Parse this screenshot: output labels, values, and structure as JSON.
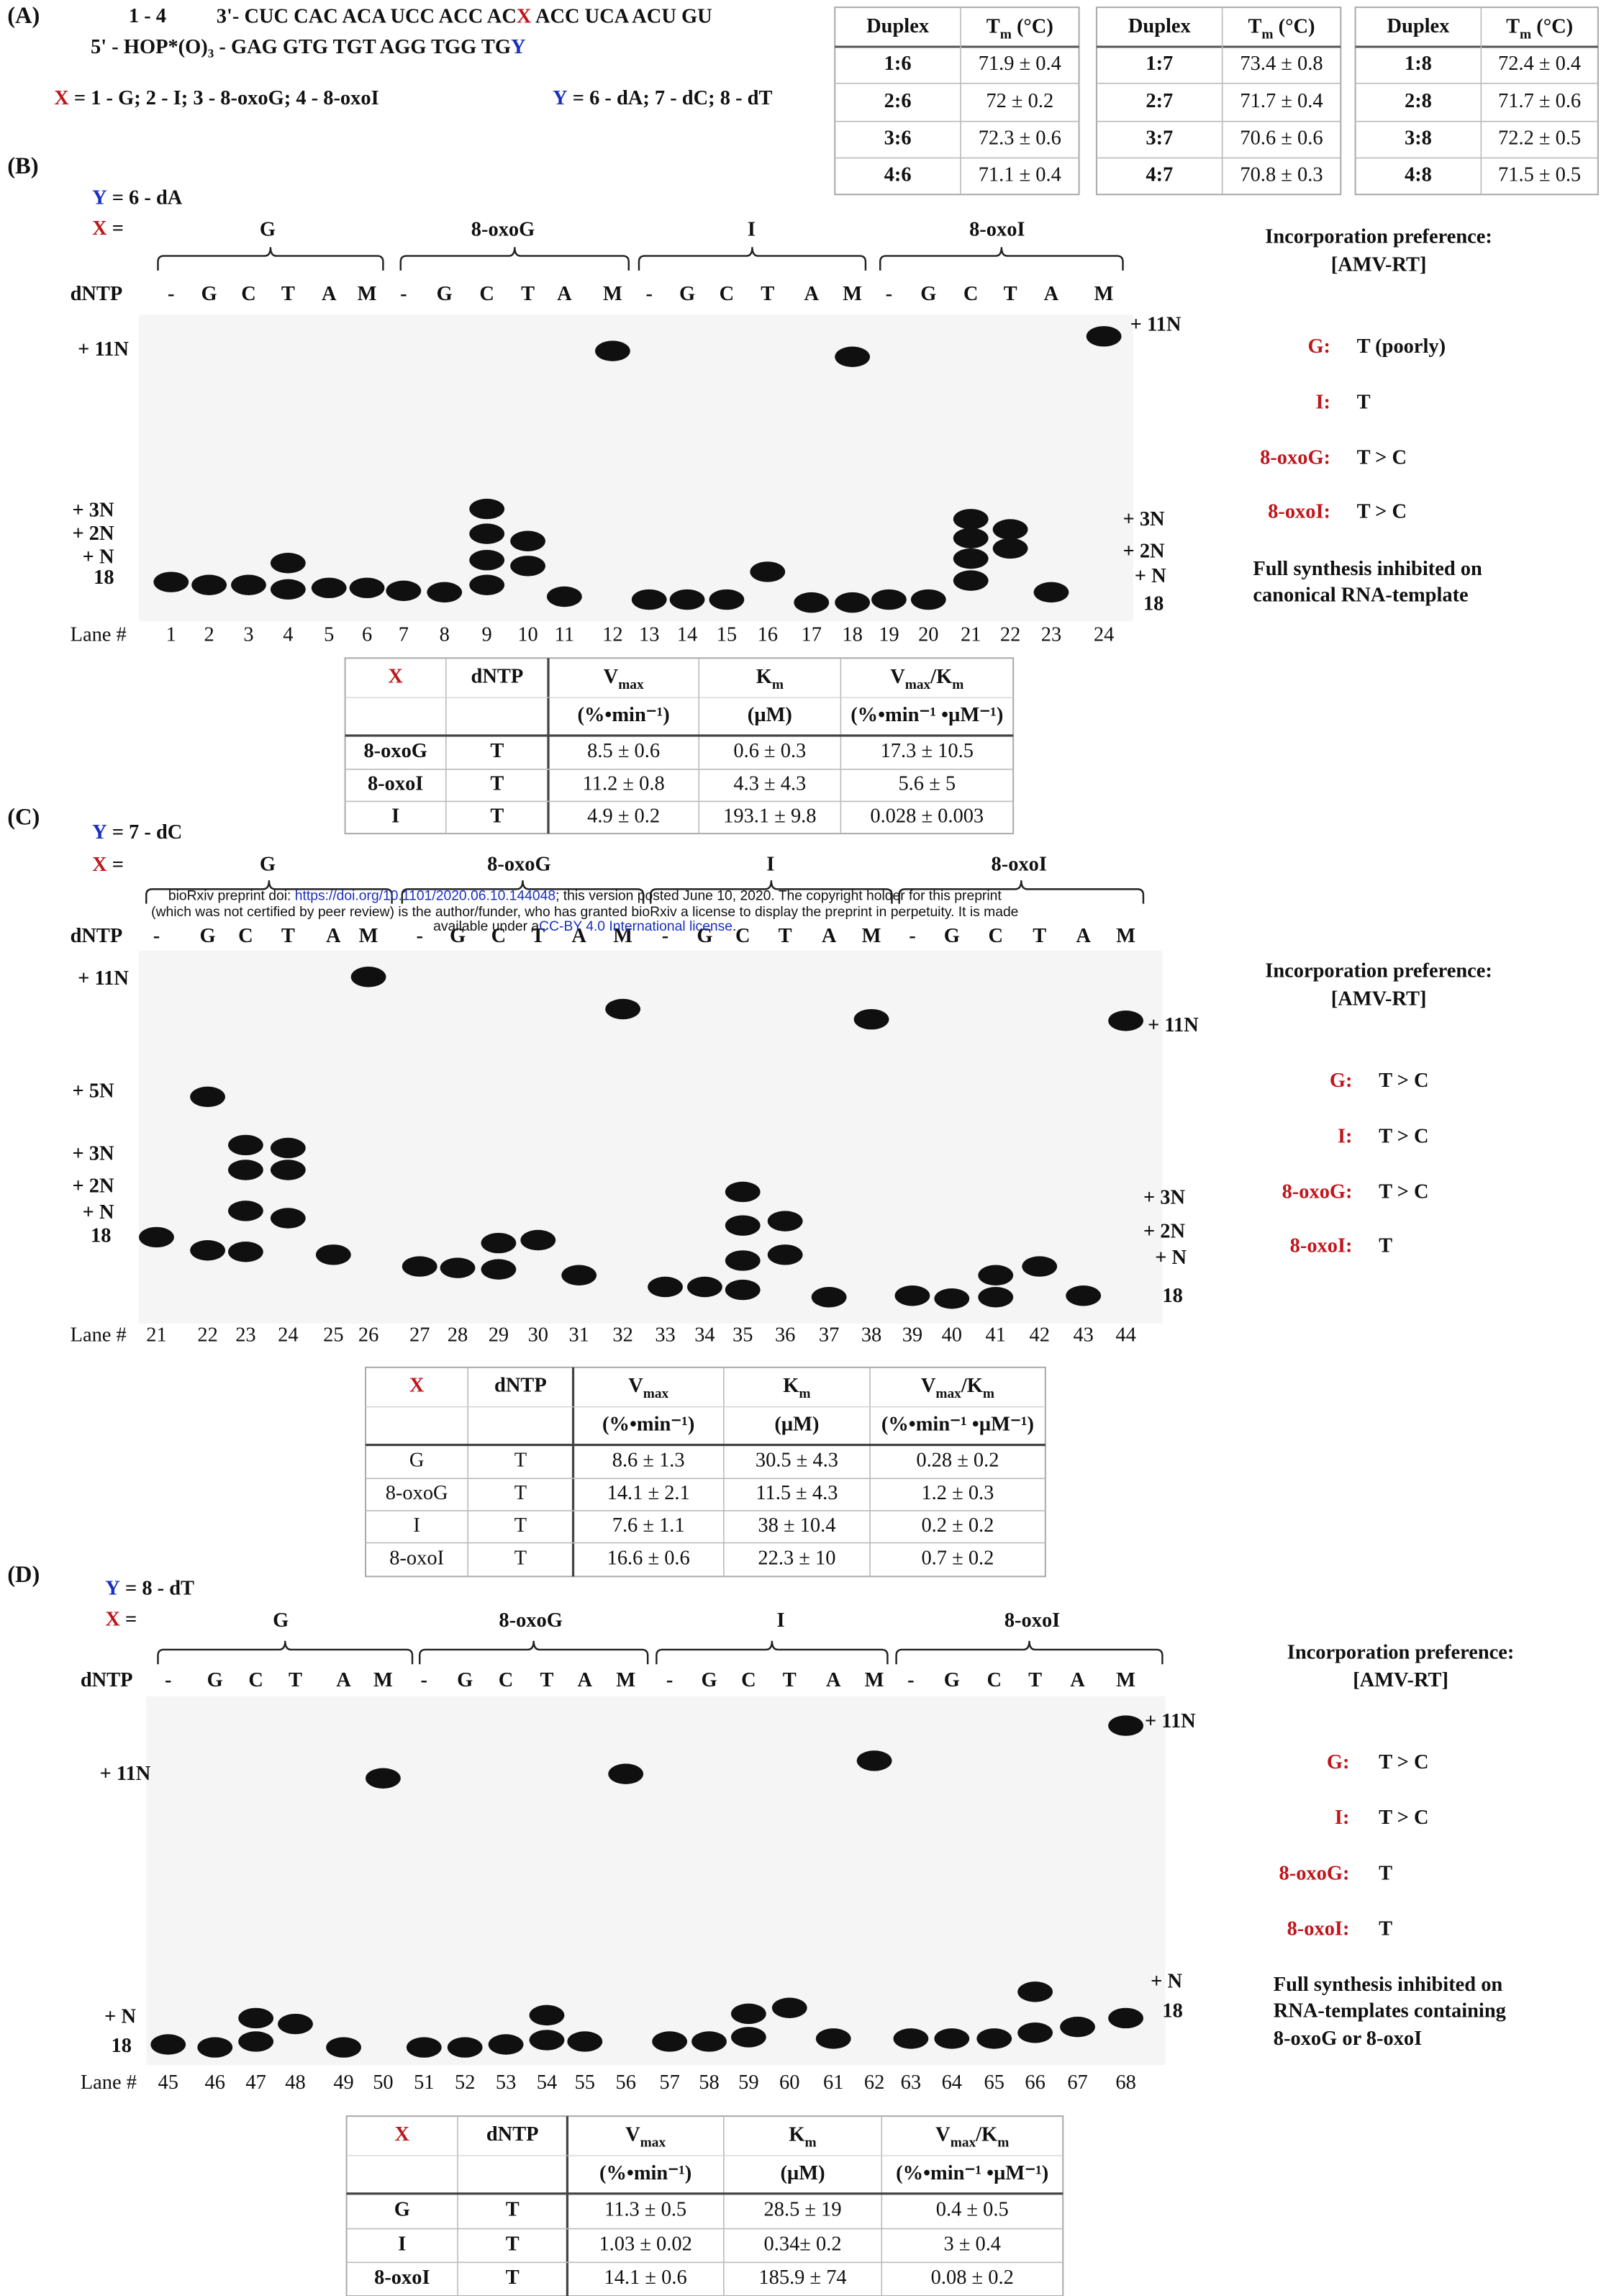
{
  "panel_a": {
    "label": "(A)",
    "strand_range": "1 - 4",
    "strand1": [
      "3'- CUC  CAC ACA UCC ACC AC",
      "X",
      " ACC UCA ACU GU"
    ],
    "strand2": [
      "5' - HOP*(O)₃ - GAG GTG TGT AGG TGG TG",
      "Y"
    ],
    "x_legend": [
      "X",
      " = 1 - G; 2 - I; 3 - 8-oxoG; 4 - 8-oxoI"
    ],
    "y_legend": [
      "Y",
      " = 6 - dA; 7 - dC; 8 - dT"
    ],
    "tm_tables": [
      {
        "header": {
          "duplex": "Duplex",
          "tm": [
            "T",
            "m",
            " (°C)"
          ]
        },
        "rows": [
          [
            "1:6",
            "71.9 ± 0.4"
          ],
          [
            "2:6",
            "72 ± 0.2"
          ],
          [
            "3:6",
            "72.3 ± 0.6"
          ],
          [
            "4:6",
            "71.1 ± 0.4"
          ]
        ]
      },
      {
        "header": {
          "duplex": "Duplex",
          "tm": [
            "T",
            "m",
            " (°C)"
          ]
        },
        "rows": [
          [
            "1:7",
            "73.4 ± 0.8"
          ],
          [
            "2:7",
            "71.7 ± 0.4"
          ],
          [
            "3:7",
            "70.6 ± 0.6"
          ],
          [
            "4:7",
            "70.8 ± 0.3"
          ]
        ]
      },
      {
        "header": {
          "duplex": "Duplex",
          "tm": [
            "T",
            "m",
            " (°C)"
          ]
        },
        "rows": [
          [
            "1:8",
            "72.4 ± 0.4"
          ],
          [
            "2:8",
            "71.7 ± 0.6"
          ],
          [
            "3:8",
            "72.2 ± 0.5"
          ],
          [
            "4:8",
            "71.5 ± 0.5"
          ]
        ]
      }
    ]
  },
  "panels": [
    {
      "label": "(B)",
      "y_label": [
        "Y",
        " = 6 - dA"
      ],
      "x_label": [
        "X",
        " ="
      ],
      "groups": [
        "G",
        "8-oxoG",
        "I",
        "8-oxoI"
      ],
      "dntp_label": "dNTP",
      "dntp": [
        "-",
        "G",
        "C",
        "T",
        "A",
        "M"
      ],
      "lane_label": "Lane #",
      "lanes": [
        1,
        2,
        3,
        4,
        5,
        6,
        7,
        8,
        9,
        10,
        11,
        12,
        13,
        14,
        15,
        16,
        17,
        18,
        19,
        20,
        21,
        22,
        23,
        24
      ],
      "left_markers": [
        "+ 11N",
        "+ 3N",
        "+ 2N",
        "+ N",
        "18"
      ],
      "right_markers": [
        "+ 11N",
        "+ 3N",
        "+ 2N",
        "+ N",
        "18"
      ],
      "side": {
        "title": [
          "Incorporation preference:",
          "[AMV-RT]"
        ],
        "prefs": [
          [
            "G:",
            "T (poorly)"
          ],
          [
            "I:",
            "T"
          ],
          [
            "8-oxoG:",
            "T > C"
          ],
          [
            "8-oxoI:",
            "T > C"
          ]
        ],
        "note": [
          "Full synthesis inhibited on",
          "canonical RNA-template"
        ]
      },
      "table": {
        "header1": [
          "X",
          "dNTP",
          [
            "V",
            "max"
          ],
          [
            "K",
            "m"
          ],
          [
            "V",
            "max",
            "/K",
            "m"
          ]
        ],
        "header2": [
          "(%•min⁻¹)",
          "(µM)",
          "(%•min⁻¹ •µM⁻¹)"
        ],
        "rows": [
          [
            "8-oxoG",
            "T",
            "8.5 ± 0.6",
            "0.6 ± 0.3",
            "17.3 ± 10.5"
          ],
          [
            "8-oxoI",
            "T",
            "11.2 ± 0.8",
            "4.3 ± 4.3",
            "5.6 ± 5"
          ],
          [
            "I",
            "T",
            "4.9 ± 0.2",
            "193.1 ± 9.8",
            "0.028 ± 0.003"
          ]
        ]
      }
    },
    {
      "label": "(C)",
      "y_label": [
        "Y",
        " = 7 - dC"
      ],
      "x_label": [
        "X",
        " ="
      ],
      "groups": [
        "G",
        "8-oxoG",
        "I",
        "8-oxoI"
      ],
      "dntp_label": "dNTP",
      "dntp": [
        "-",
        "G",
        "C",
        "T",
        "A",
        "M"
      ],
      "lane_label": "Lane #",
      "lanes": [
        21,
        22,
        23,
        24,
        25,
        26,
        27,
        28,
        29,
        30,
        31,
        32,
        33,
        34,
        35,
        36,
        37,
        38,
        39,
        40,
        41,
        42,
        43,
        44
      ],
      "left_markers": [
        "+ 11N",
        "+ 5N",
        "+ 3N",
        "+ 2N",
        "+ N",
        "18"
      ],
      "right_markers": [
        "+ 11N",
        "+ 3N",
        "+ 2N",
        "+ N",
        "18"
      ],
      "side": {
        "title": [
          "Incorporation preference:",
          "[AMV-RT]"
        ],
        "prefs": [
          [
            "G:",
            "T > C"
          ],
          [
            "I:",
            "T > C"
          ],
          [
            "8-oxoG:",
            "T > C"
          ],
          [
            "8-oxoI:",
            "T"
          ]
        ]
      },
      "table": {
        "header1": [
          "X",
          "dNTP",
          [
            "V",
            "max"
          ],
          [
            "K",
            "m"
          ],
          [
            "V",
            "max",
            "/K",
            "m"
          ]
        ],
        "header2": [
          "(%•min⁻¹)",
          "(µM)",
          "(%•min⁻¹ •µM⁻¹)"
        ],
        "rows": [
          [
            "G",
            "T",
            "8.6 ± 1.3",
            "30.5 ± 4.3",
            "0.28 ± 0.2"
          ],
          [
            "8-oxoG",
            "T",
            "14.1 ± 2.1",
            "11.5 ± 4.3",
            "1.2 ± 0.3"
          ],
          [
            "I",
            "T",
            "7.6 ± 1.1",
            "38 ± 10.4",
            "0.2 ± 0.2"
          ],
          [
            "8-oxoI",
            "T",
            "16.6 ± 0.6",
            "22.3 ± 10",
            "0.7 ± 0.2"
          ]
        ]
      }
    },
    {
      "label": "(D)",
      "y_label": [
        "Y",
        " = 8 - dT"
      ],
      "x_label": [
        "X",
        " ="
      ],
      "groups": [
        "G",
        "8-oxoG",
        "I",
        "8-oxoI"
      ],
      "dntp_label": "dNTP",
      "dntp": [
        "-",
        "G",
        "C",
        "T",
        "A",
        "M"
      ],
      "lane_label": "Lane #",
      "lanes": [
        45,
        46,
        47,
        48,
        49,
        50,
        51,
        52,
        53,
        54,
        55,
        56,
        57,
        58,
        59,
        60,
        61,
        62,
        63,
        64,
        65,
        66,
        67,
        68
      ],
      "left_markers": [
        "+ 11N",
        "+ N",
        "18"
      ],
      "right_markers": [
        "+ 11N",
        "+ N",
        "18"
      ],
      "side": {
        "title": [
          "Incorporation preference:",
          "[AMV-RT]"
        ],
        "prefs": [
          [
            "G:",
            "T > C"
          ],
          [
            "I:",
            "T > C"
          ],
          [
            "8-oxoG:",
            "T"
          ],
          [
            "8-oxoI:",
            "T"
          ]
        ],
        "note": [
          "Full synthesis inhibited on",
          "RNA-templates containing",
          "8-oxoG or 8-oxoI"
        ]
      },
      "table": {
        "header1": [
          "X",
          "dNTP",
          [
            "V",
            "max"
          ],
          [
            "K",
            "m"
          ],
          [
            "V",
            "max",
            "/K",
            "m"
          ]
        ],
        "header2": [
          "(%•min⁻¹)",
          "(µM)",
          "(%•min⁻¹ •µM⁻¹)"
        ],
        "rows": [
          [
            "G",
            "T",
            "11.3 ± 0.5",
            "28.5 ± 19",
            "0.4 ± 0.5"
          ],
          [
            "I",
            "T",
            "1.03 ± 0.02",
            "0.34± 0.2",
            "3 ± 0.4"
          ],
          [
            "8-oxoI",
            "T",
            "14.1 ± 0.6",
            "185.9 ± 74",
            "0.08 ± 0.2"
          ]
        ]
      }
    }
  ],
  "watermark": [
    [
      "bioRxiv preprint doi: ",
      "https://doi.org/10.1101/2020.06.10.144048",
      "; this version posted June 10, 2020. The copyright holder for this preprint"
    ],
    [
      "(which was not certified by peer review) is the author/funder, who has granted bioRxiv a license to display the preprint in perpetuity. It is made"
    ],
    [
      "available under a",
      "CC-BY 4.0 International license",
      "."
    ]
  ]
}
